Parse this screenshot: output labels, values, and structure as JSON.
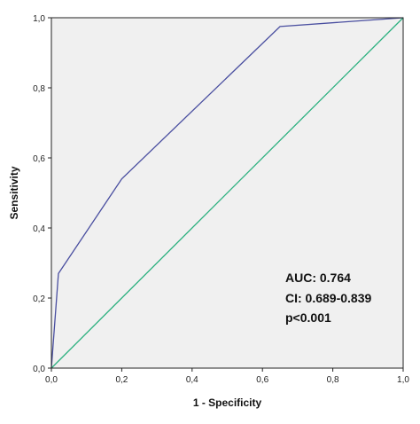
{
  "chart_data": {
    "type": "line",
    "title": "",
    "xlabel": "1 - Specificity",
    "ylabel": "Sensitivity",
    "xlim": [
      0,
      1
    ],
    "ylim": [
      0,
      1
    ],
    "x_tick_values": [
      0,
      0.2,
      0.4,
      0.6,
      0.8,
      1.0
    ],
    "x_tick_labels": [
      "0,0",
      "0,2",
      "0,4",
      "0,6",
      "0,8",
      "1,0"
    ],
    "y_tick_values": [
      0,
      0.2,
      0.4,
      0.6,
      0.8,
      1.0
    ],
    "y_tick_labels": [
      "0,0",
      "0,2",
      "0,4",
      "0,6",
      "0,8",
      "1,0"
    ],
    "grid": false,
    "background_color": "#f0f0f0",
    "series": [
      {
        "color": "#4a4fa0",
        "x": [
          0.0,
          0.02,
          0.2,
          0.65,
          1.0
        ],
        "y": [
          0.0,
          0.27,
          0.54,
          0.975,
          1.0
        ]
      },
      {
        "color": "#2bb07f",
        "x": [
          0.0,
          1.0
        ],
        "y": [
          0.0,
          1.0
        ]
      }
    ],
    "annotations": [
      "AUC: 0.764",
      "CI: 0.689-0.839",
      "p<0.001"
    ]
  }
}
